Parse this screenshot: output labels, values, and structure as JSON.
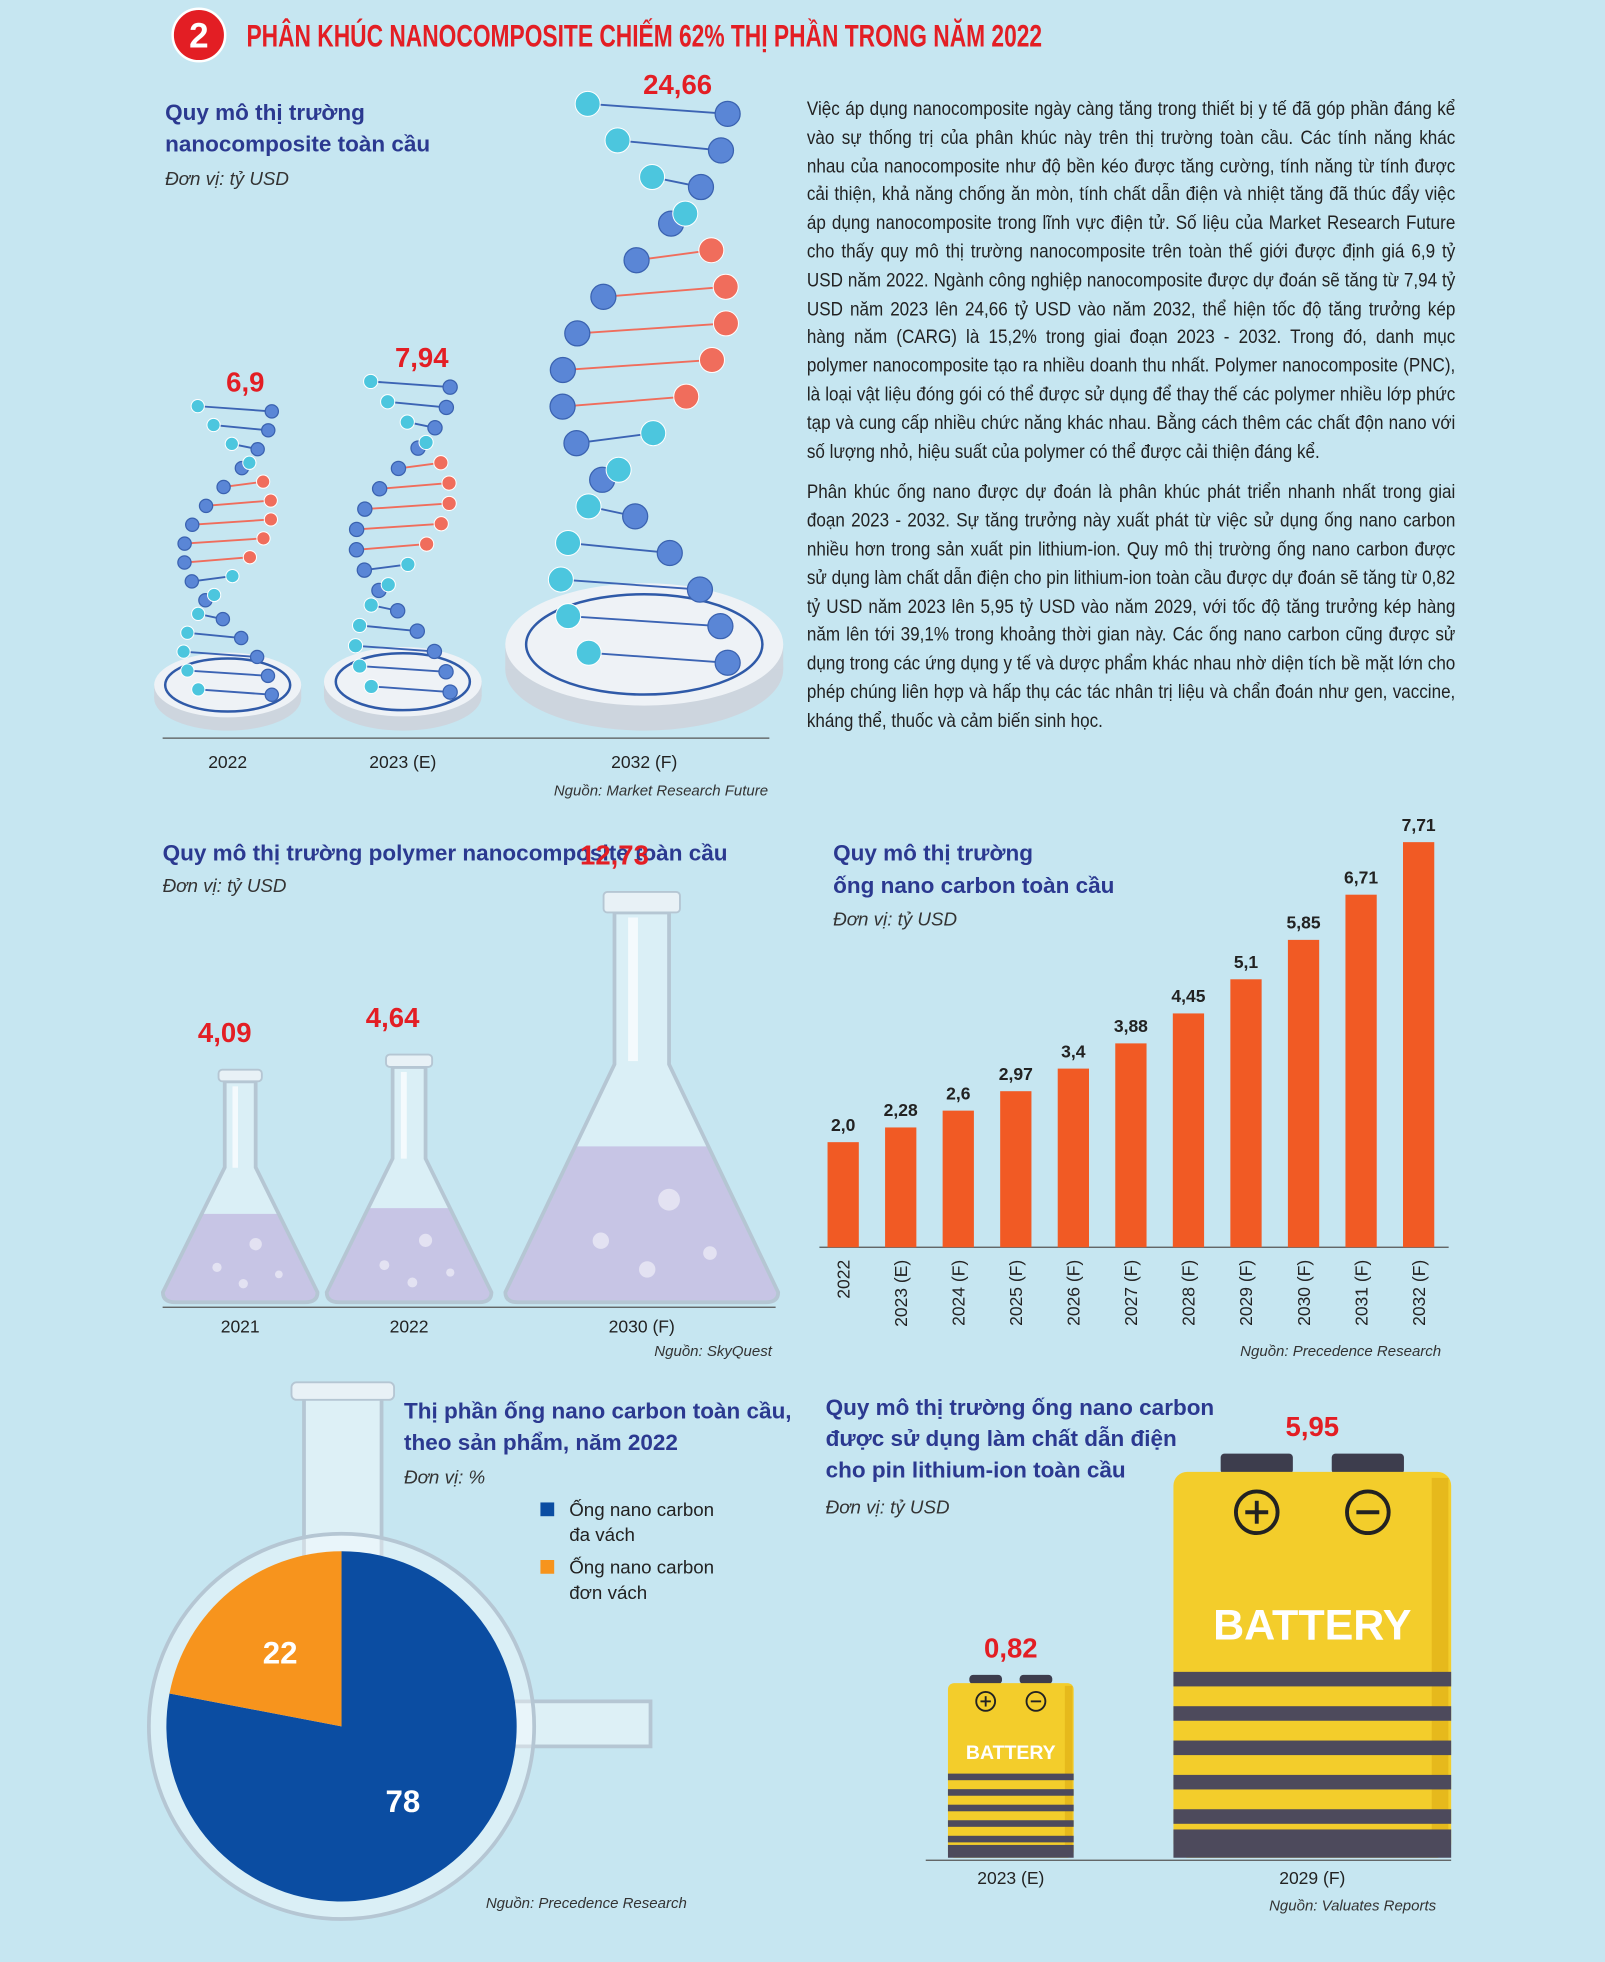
{
  "header": {
    "number": "2",
    "title": "PHÂN KHÚC NANOCOMPOSITE CHIẾM 62% THỊ PHẦN TRONG NĂM 2022"
  },
  "article": {
    "paragraphs": [
      "Việc áp dụng nanocomposite ngày càng tăng trong thiết bị y tế đã góp phần đáng kể vào sự thống trị của phân khúc này trên thị trường toàn cầu. Các tính năng khác nhau của nanocomposite như độ bền kéo được tăng cường, tính năng từ tính được cải thiện, khả năng chống ăn mòn, tính chất dẫn điện và nhiệt tăng đã thúc đẩy việc áp dụng nanocomposite trong lĩnh vực điện tử. Số liệu của Market Research Future cho thấy quy mô thị trường nanocomposite trên toàn thế giới được định giá 6,9 tỷ USD năm 2022. Ngành công nghiệp nanocomposite được dự đoán sẽ tăng từ 7,94 tỷ USD năm 2023 lên 24,66 tỷ USD vào năm 2032, thể hiện tốc độ tăng trưởng kép hàng năm (CARG) là 15,2% trong giai đoạn 2023 - 2032. Trong đó, danh mục polymer nanocomposite tạo ra nhiều doanh thu nhất. Polymer nanocomposite (PNC), là loại vật liệu đóng gói có thể được sử dụng để thay thế các polymer nhiều lớp phức tạp và cung cấp nhiều chức năng khác nhau. Bằng cách thêm các chất độn nano với số lượng nhỏ, hiệu suất của polymer có thể được cải thiện đáng kể.",
      "Phân khúc ống nano được dự đoán là phân khúc phát triển nhanh nhất trong giai đoạn 2023 - 2032. Sự tăng trưởng này xuất phát từ việc sử dụng ống nano carbon nhiều hơn trong sản xuất pin lithium-ion. Quy mô thị trường ống nano carbon được sử dụng làm chất dẫn điện cho pin lithium-ion toàn cầu được dự đoán sẽ tăng từ 0,82 tỷ USD năm 2023 lên 5,95 tỷ USD vào năm 2029, với tốc độ tăng trưởng kép hàng năm lên tới 39,1% trong khoảng thời gian này. Các ống nano carbon cũng được sử dụng trong các ứng dụng y tế và dược phẩm khác nhau nhờ diện tích bề mặt lớn cho phép chúng liên hợp và hấp thụ các tác nhân trị liệu và chẩn đoán như gen, vaccine, kháng thể, thuốc và cảm biến sinh học."
    ]
  },
  "chart_data": [
    {
      "type": "dna",
      "title": [
        "Quy mô thị trường",
        "nanocomposite toàn cầu"
      ],
      "unit": "Đơn vị: tỷ USD",
      "source": "Nguồn: Market Research Future",
      "categories": [
        "2022",
        "2023 (E)",
        "2032 (F)"
      ],
      "values": [
        6.9,
        7.94,
        24.66
      ],
      "value_labels": [
        "6,9",
        "7,94",
        "24,66"
      ],
      "label_color": "#e31e24"
    },
    {
      "type": "flask",
      "title": [
        "Quy mô thị trường polymer nanocomposite toàn cầu"
      ],
      "unit": "Đơn vị: tỷ USD",
      "source": "Nguồn: SkyQuest",
      "categories": [
        "2021",
        "2022",
        "2030 (F)"
      ],
      "values": [
        4.09,
        4.64,
        12.73
      ],
      "value_labels": [
        "4,09",
        "4,64",
        "12,73"
      ],
      "label_color": "#e31e24"
    },
    {
      "type": "bar",
      "title": [
        "Quy mô thị trường",
        "ống nano carbon toàn cầu"
      ],
      "unit": "Đơn vị: tỷ USD",
      "source": "Nguồn: Precedence Research",
      "categories": [
        "2022",
        "2023 (E)",
        "2024 (F)",
        "2025 (F)",
        "2026 (F)",
        "2027 (F)",
        "2028 (F)",
        "2029 (F)",
        "2030 (F)",
        "2031 (F)",
        "2032 (F)"
      ],
      "values": [
        2.0,
        2.28,
        2.6,
        2.97,
        3.4,
        3.88,
        4.45,
        5.1,
        5.85,
        6.71,
        7.71
      ],
      "value_labels": [
        "2,0",
        "2,28",
        "2,6",
        "2,97",
        "3,4",
        "3,88",
        "4,45",
        "5,1",
        "5,85",
        "6,71",
        "7,71"
      ],
      "color": "#f15a24"
    },
    {
      "type": "pie",
      "title": [
        "Thị phần ống nano carbon toàn cầu,",
        "theo sản phẩm, năm 2022"
      ],
      "unit": "Đơn vị: %",
      "source": "Nguồn: Precedence Research",
      "categories": [
        [
          "Ống nano carbon",
          "đa vách"
        ],
        [
          "Ống nano carbon",
          "đơn vách"
        ]
      ],
      "values": [
        78,
        22
      ],
      "colors": [
        "#0b4da2",
        "#f7941d"
      ]
    },
    {
      "type": "battery",
      "title": [
        "Quy mô thị trường ống nano carbon",
        "được sử dụng làm chất dẫn điện",
        "cho pin lithium-ion toàn cầu"
      ],
      "unit": "Đơn vị: tỷ USD",
      "source": "Nguồn: Valuates Reports",
      "categories": [
        "2023 (E)",
        "2029 (F)"
      ],
      "values": [
        0.82,
        5.95
      ],
      "value_labels": [
        "0,82",
        "5,95"
      ],
      "icon_label": "BATTERY",
      "label_color": "#e31e24"
    }
  ]
}
